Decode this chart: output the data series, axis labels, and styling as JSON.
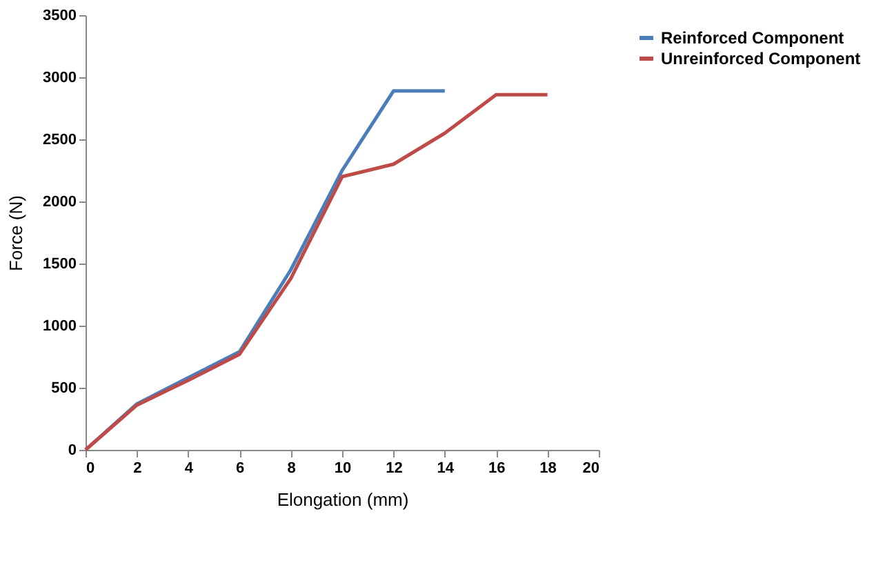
{
  "chart_data": {
    "type": "line",
    "xlabel": "Elongation (mm)",
    "ylabel": "Force  (N)",
    "xlim": [
      0,
      20
    ],
    "xticks": [
      0,
      2,
      4,
      6,
      8,
      10,
      12,
      14,
      16,
      18,
      20
    ],
    "ylim": [
      0,
      3500
    ],
    "yticks": [
      0,
      500,
      1000,
      1500,
      2000,
      2500,
      3000,
      3500
    ],
    "grid": false,
    "legend": "right",
    "marker": "none",
    "line_style": "solid",
    "series": [
      {
        "name": "Reinforced Component",
        "color": "#4a7ebb",
        "x": [
          0,
          2,
          4,
          6,
          8,
          10,
          12,
          14
        ],
        "values": [
          0,
          370,
          580,
          790,
          1450,
          2250,
          2890,
          2890
        ]
      },
      {
        "name": "Unreinforced Component",
        "color": "#be4b48",
        "x": [
          0,
          2,
          4,
          6,
          8,
          10,
          12,
          14,
          16,
          18
        ],
        "values": [
          0,
          360,
          560,
          770,
          1380,
          2200,
          2300,
          2550,
          2860,
          2860
        ]
      }
    ]
  }
}
